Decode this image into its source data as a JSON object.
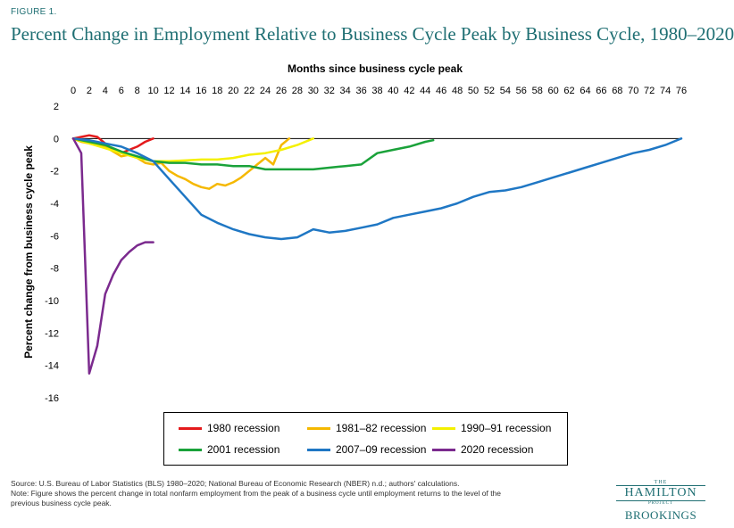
{
  "figure_label": "FIGURE 1.",
  "title": "Percent Change in Employment Relative to Business Cycle Peak by Business Cycle, 1980–2020",
  "source_note": "Source: U.S. Bureau of Labor Statistics (BLS) 1980–2020; National Bureau of Economic Research (NBER) n.d.; authors' calculations.",
  "note": "Note: Figure shows the percent change in total nonfarm employment from the peak of a business cycle until employment returns to the level of the previous business cycle peak.",
  "logos": {
    "hamilton_the": "THE",
    "hamilton_name": "HAMILTON",
    "hamilton_project": "PROJECT",
    "brookings": "BROOKINGS"
  },
  "chart_data": {
    "type": "line",
    "xlabel": "Months since business cycle peak",
    "ylabel": "Percent change from business cycle peak",
    "xlim": [
      0,
      76
    ],
    "ylim": [
      -16,
      2
    ],
    "xticks": [
      0,
      2,
      4,
      6,
      8,
      10,
      12,
      14,
      16,
      18,
      20,
      22,
      24,
      26,
      28,
      30,
      32,
      34,
      36,
      38,
      40,
      42,
      44,
      46,
      48,
      50,
      52,
      54,
      56,
      58,
      60,
      62,
      64,
      66,
      68,
      70,
      72,
      74,
      76
    ],
    "yticks": [
      2,
      0,
      -2,
      -4,
      -6,
      -8,
      -10,
      -12,
      -14,
      -16
    ],
    "x_axis_position": "top",
    "zero_line": true,
    "grid": false,
    "legend_position": "bottom",
    "series": [
      {
        "name": "1980 recession",
        "color": "#e41a1c",
        "x": [
          0,
          1,
          2,
          3,
          4,
          5,
          6,
          7,
          8,
          9,
          10
        ],
        "y": [
          0,
          0.1,
          0.2,
          0.1,
          -0.3,
          -0.7,
          -0.9,
          -0.7,
          -0.5,
          -0.2,
          0
        ]
      },
      {
        "name": "1981–82 recession",
        "color": "#f5b800",
        "x": [
          0,
          1,
          2,
          3,
          4,
          5,
          6,
          7,
          8,
          9,
          10,
          11,
          12,
          13,
          14,
          15,
          16,
          17,
          18,
          19,
          20,
          21,
          22,
          23,
          24,
          25,
          26,
          27
        ],
        "y": [
          0,
          -0.2,
          -0.3,
          -0.4,
          -0.5,
          -0.8,
          -1.1,
          -1.0,
          -1.2,
          -1.5,
          -1.6,
          -1.5,
          -2.0,
          -2.3,
          -2.5,
          -2.8,
          -3.0,
          -3.1,
          -2.8,
          -2.9,
          -2.7,
          -2.4,
          -2.0,
          -1.6,
          -1.2,
          -1.6,
          -0.4,
          0
        ]
      },
      {
        "name": "1990–91 recession",
        "color": "#f4f000",
        "x": [
          0,
          2,
          4,
          6,
          8,
          10,
          12,
          14,
          16,
          18,
          20,
          22,
          24,
          26,
          28,
          30
        ],
        "y": [
          0,
          -0.3,
          -0.6,
          -0.9,
          -1.2,
          -1.4,
          -1.4,
          -1.35,
          -1.3,
          -1.3,
          -1.2,
          -1.0,
          -0.9,
          -0.7,
          -0.4,
          0
        ]
      },
      {
        "name": "2001 recession",
        "color": "#1aa23a",
        "x": [
          0,
          2,
          4,
          6,
          8,
          10,
          12,
          14,
          16,
          18,
          20,
          22,
          24,
          26,
          28,
          30,
          32,
          34,
          36,
          38,
          40,
          42,
          44,
          45
        ],
        "y": [
          0,
          -0.2,
          -0.4,
          -0.8,
          -1.1,
          -1.4,
          -1.5,
          -1.5,
          -1.6,
          -1.6,
          -1.7,
          -1.7,
          -1.9,
          -1.9,
          -1.9,
          -1.9,
          -1.8,
          -1.7,
          -1.6,
          -0.9,
          -0.7,
          -0.5,
          -0.2,
          -0.1
        ]
      },
      {
        "name": "2007–09 recession",
        "color": "#1f77c4",
        "x": [
          0,
          2,
          4,
          6,
          8,
          10,
          12,
          14,
          16,
          18,
          20,
          22,
          24,
          26,
          28,
          30,
          32,
          34,
          36,
          38,
          40,
          42,
          44,
          46,
          48,
          50,
          52,
          54,
          56,
          58,
          60,
          62,
          64,
          66,
          68,
          70,
          72,
          74,
          76
        ],
        "y": [
          0,
          -0.1,
          -0.3,
          -0.5,
          -0.9,
          -1.4,
          -2.5,
          -3.6,
          -4.7,
          -5.2,
          -5.6,
          -5.9,
          -6.1,
          -6.2,
          -6.1,
          -5.6,
          -5.8,
          -5.7,
          -5.5,
          -5.3,
          -4.9,
          -4.7,
          -4.5,
          -4.3,
          -4.0,
          -3.6,
          -3.3,
          -3.2,
          -3.0,
          -2.7,
          -2.4,
          -2.1,
          -1.8,
          -1.5,
          -1.2,
          -0.9,
          -0.7,
          -0.4,
          0
        ]
      },
      {
        "name": "2020 recession",
        "color": "#7b2a8e",
        "x": [
          0,
          1,
          2,
          3,
          4,
          5,
          6,
          7,
          8,
          9,
          10
        ],
        "y": [
          0,
          -0.9,
          -14.5,
          -12.8,
          -9.6,
          -8.4,
          -7.5,
          -7.0,
          -6.6,
          -6.4,
          -6.4
        ]
      }
    ]
  }
}
